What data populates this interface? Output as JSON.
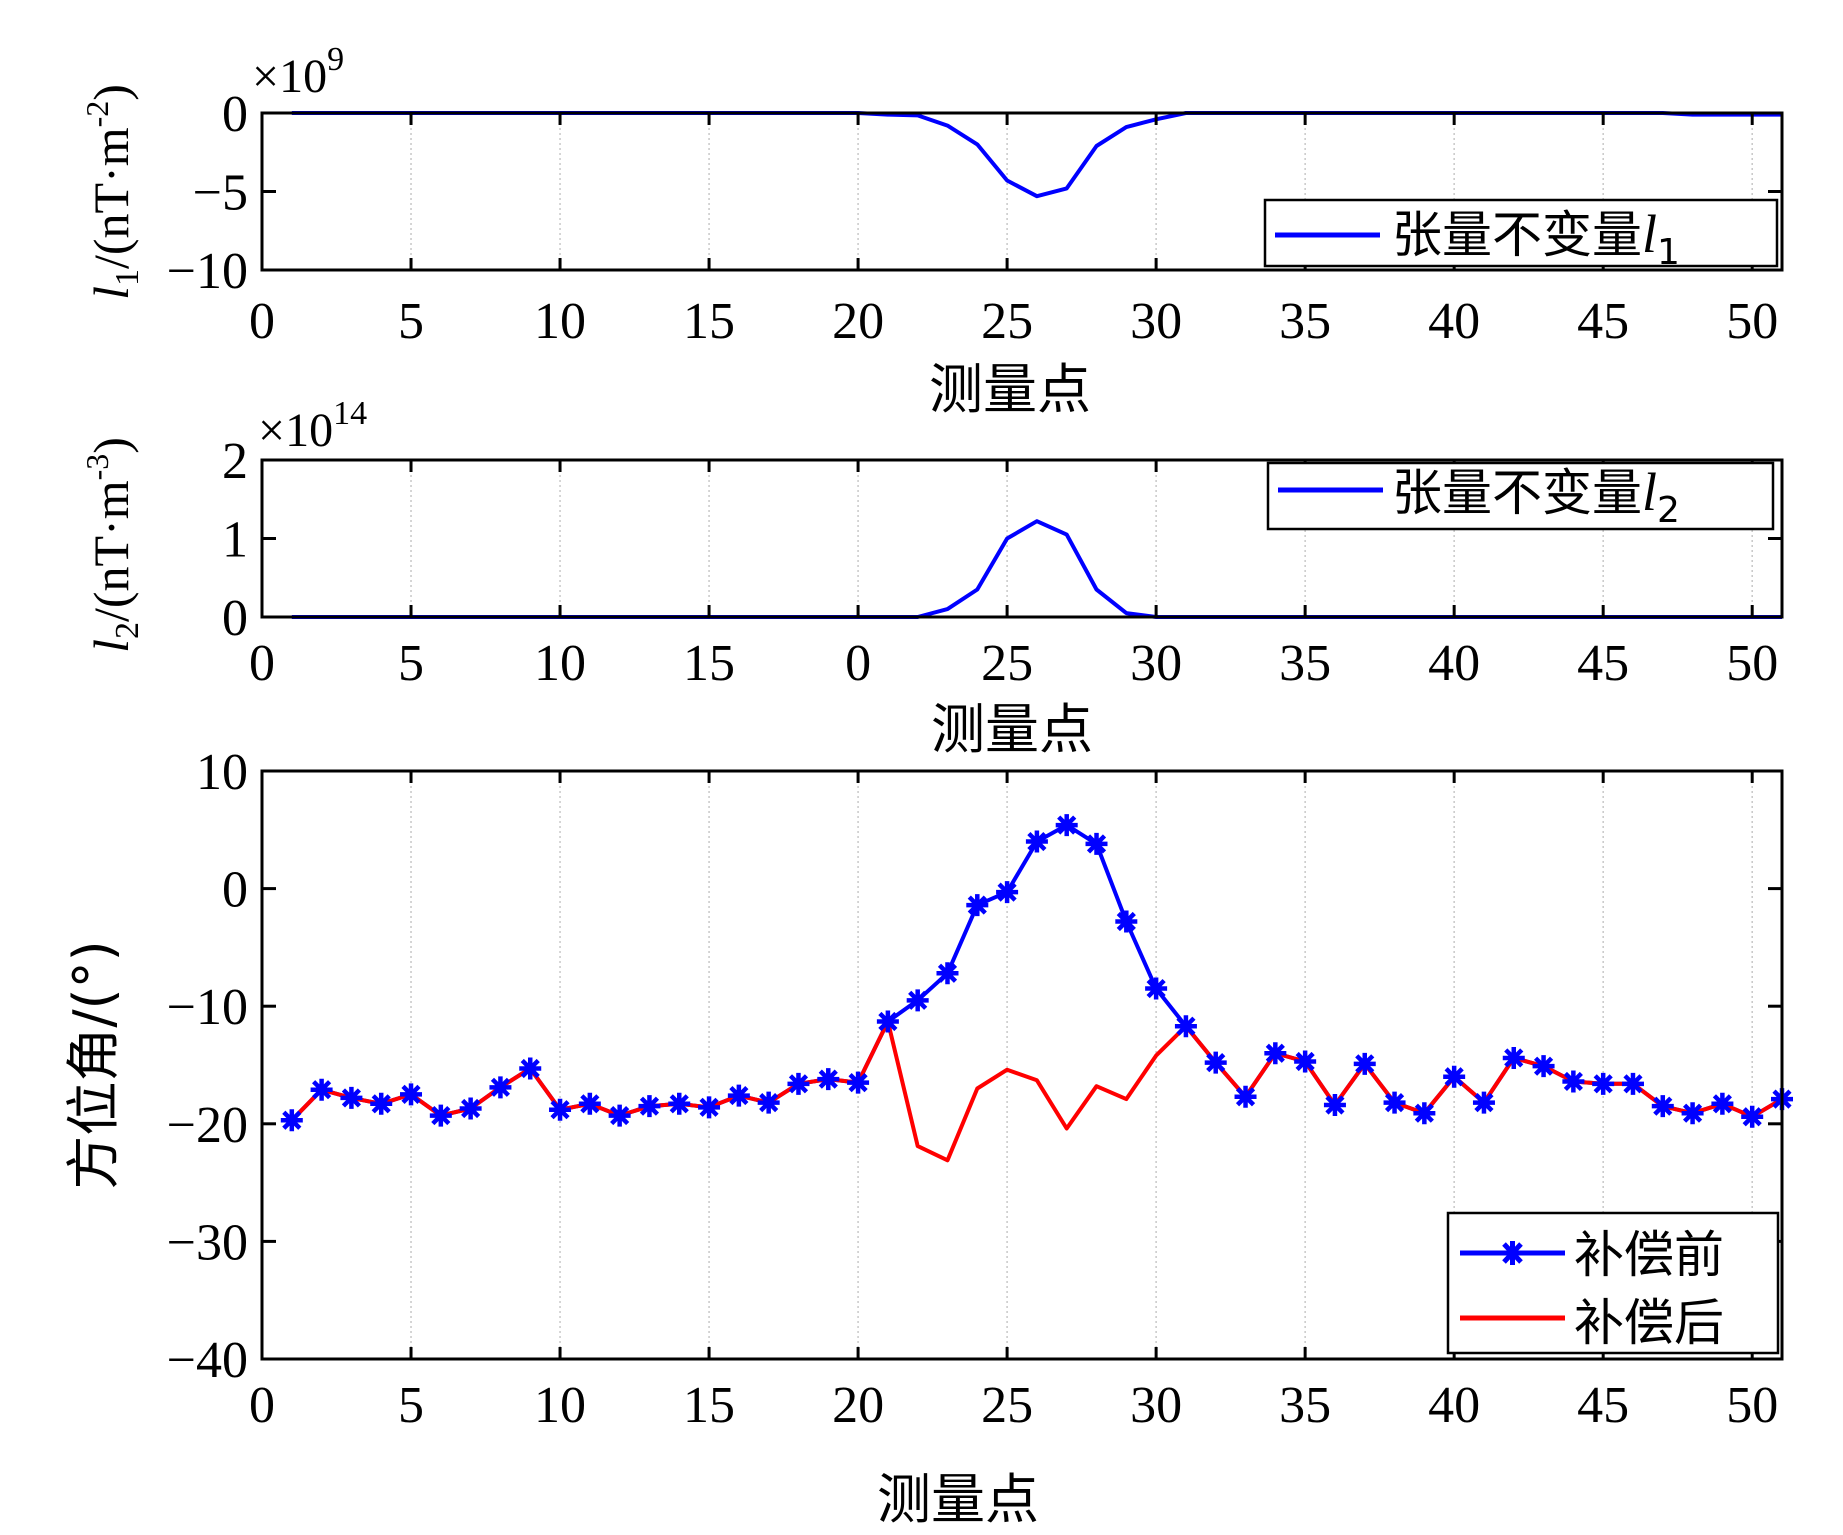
{
  "chart_data": [
    {
      "type": "line",
      "x": [
        1,
        2,
        3,
        4,
        5,
        6,
        7,
        8,
        9,
        10,
        11,
        12,
        13,
        14,
        15,
        16,
        17,
        18,
        19,
        20,
        21,
        22,
        23,
        24,
        25,
        26,
        27,
        28,
        29,
        30,
        31,
        32,
        33,
        34,
        35,
        36,
        37,
        38,
        39,
        40,
        41,
        42,
        43,
        44,
        45,
        46,
        47,
        48,
        49,
        50,
        51
      ],
      "series": [
        {
          "name": "张量不变量l1",
          "color": "#0000ff",
          "values": [
            0,
            0,
            0,
            0,
            0,
            0,
            0,
            0,
            0,
            0,
            0,
            0,
            0,
            0,
            0,
            0,
            0,
            0,
            0,
            0,
            -0.1,
            -0.15,
            -0.8,
            -2.0,
            -4.3,
            -5.3,
            -4.8,
            -2.1,
            -0.9,
            -0.4,
            0,
            0,
            0,
            0,
            0,
            0,
            0,
            0,
            0,
            0,
            0,
            0,
            0,
            0,
            0,
            0,
            0,
            -0.1,
            -0.1,
            -0.1,
            -0.1
          ]
        }
      ],
      "multiplier": "×10",
      "multiplier_exp": "9",
      "ylabel_main": "l",
      "ylabel_sub": "1",
      "ylabel_unit": "/(nT·m",
      "ylabel_unit_exp": "-2",
      "ylabel_close": ")",
      "xlabel": "测量点",
      "xlim": [
        0,
        51
      ],
      "ylim": [
        -10,
        0
      ],
      "xticks": [
        "0",
        "5",
        "10",
        "15",
        "20",
        "25",
        "30",
        "35",
        "40",
        "45",
        "50"
      ],
      "yticks": [
        "0",
        "−5",
        "−10"
      ],
      "legend_text": "张量不变量",
      "legend_var": "l",
      "legend_sub": "1",
      "legend_position": "bottom-right",
      "grid": "x-only"
    },
    {
      "type": "line",
      "x": [
        1,
        2,
        3,
        4,
        5,
        6,
        7,
        8,
        9,
        10,
        11,
        12,
        13,
        14,
        15,
        16,
        17,
        18,
        19,
        20,
        21,
        22,
        23,
        24,
        25,
        26,
        27,
        28,
        29,
        30,
        31,
        32,
        33,
        34,
        35,
        36,
        37,
        38,
        39,
        40,
        41,
        42,
        43,
        44,
        45,
        46,
        47,
        48,
        49,
        50,
        51
      ],
      "series": [
        {
          "name": "张量不变量l2",
          "color": "#0000ff",
          "values": [
            0,
            0,
            0,
            0,
            0,
            0,
            0,
            0,
            0,
            0,
            0,
            0,
            0,
            0,
            0,
            0,
            0,
            0,
            0,
            0,
            0,
            0,
            0.1,
            0.35,
            1.0,
            1.22,
            1.05,
            0.35,
            0.05,
            0,
            0,
            0,
            0,
            0,
            0,
            0,
            0,
            0,
            0,
            0,
            0,
            0,
            0,
            0,
            0,
            0,
            0,
            0,
            0,
            0,
            0
          ]
        }
      ],
      "multiplier": "×10",
      "multiplier_exp": "14",
      "ylabel_main": "l",
      "ylabel_sub": "2",
      "ylabel_unit": "/(nT·m",
      "ylabel_unit_exp": "-3",
      "ylabel_close": ")",
      "xlabel": "测量点",
      "xlim": [
        0,
        51
      ],
      "ylim": [
        0,
        2
      ],
      "xticks": [
        "0",
        "5",
        "10",
        "15",
        "0",
        "25",
        "30",
        "35",
        "40",
        "45",
        "50"
      ],
      "yticks": [
        "0",
        "1",
        "2"
      ],
      "legend_text": "张量不变量",
      "legend_var": "l",
      "legend_sub": "2",
      "legend_position": "top-right",
      "grid": "x-only"
    },
    {
      "type": "line",
      "x": [
        1,
        2,
        3,
        4,
        5,
        6,
        7,
        8,
        9,
        10,
        11,
        12,
        13,
        14,
        15,
        16,
        17,
        18,
        19,
        20,
        21,
        22,
        23,
        24,
        25,
        26,
        27,
        28,
        29,
        30,
        31,
        32,
        33,
        34,
        35,
        36,
        37,
        38,
        39,
        40,
        41,
        42,
        43,
        44,
        45,
        46,
        47,
        48,
        49,
        50,
        51
      ],
      "series": [
        {
          "name": "补偿前",
          "color": "#0000ff",
          "marker": "star",
          "values": [
            -19.7,
            -17.1,
            -17.8,
            -18.3,
            -17.5,
            -19.3,
            -18.7,
            -16.9,
            -15.3,
            -18.8,
            -18.3,
            -19.3,
            -18.5,
            -18.3,
            -18.6,
            -17.6,
            -18.2,
            -16.6,
            -16.2,
            -16.5,
            -11.3,
            -9.5,
            -7.2,
            -1.4,
            -0.3,
            4.0,
            5.4,
            3.8,
            -2.8,
            -8.5,
            -11.7,
            -14.8,
            -17.7,
            -14.0,
            -14.7,
            -18.4,
            -14.9,
            -18.2,
            -19.1,
            -16.0,
            -18.2,
            -14.4,
            -15.1,
            -16.4,
            -16.6,
            -16.6,
            -18.5,
            -19.1,
            -18.3,
            -19.4,
            -17.9
          ]
        },
        {
          "name": "补偿后",
          "color": "#ff0000",
          "values": [
            -19.7,
            -17.1,
            -17.8,
            -18.3,
            -17.5,
            -19.3,
            -18.7,
            -16.9,
            -15.3,
            -18.8,
            -18.3,
            -19.3,
            -18.5,
            -18.3,
            -18.6,
            -17.6,
            -18.2,
            -16.6,
            -16.2,
            -16.5,
            -11.3,
            -21.9,
            -23.1,
            -17.0,
            -15.4,
            -16.3,
            -20.4,
            -16.8,
            -17.9,
            -14.2,
            -11.7,
            -14.8,
            -17.7,
            -14.0,
            -14.7,
            -18.4,
            -14.9,
            -18.2,
            -19.1,
            -16.0,
            -18.2,
            -14.4,
            -15.1,
            -16.4,
            -16.6,
            -16.6,
            -18.5,
            -19.1,
            -18.3,
            -19.4,
            -17.9
          ]
        }
      ],
      "ylabel": "方位角/(°)",
      "xlabel": "测量点",
      "xlim": [
        0,
        51
      ],
      "ylim": [
        -40,
        10
      ],
      "xticks": [
        "0",
        "5",
        "10",
        "15",
        "20",
        "25",
        "30",
        "35",
        "40",
        "45",
        "50"
      ],
      "yticks": [
        "10",
        "0",
        "−10",
        "−20",
        "−30",
        "−40"
      ],
      "legend_position": "bottom-right",
      "grid": "x-only"
    }
  ]
}
